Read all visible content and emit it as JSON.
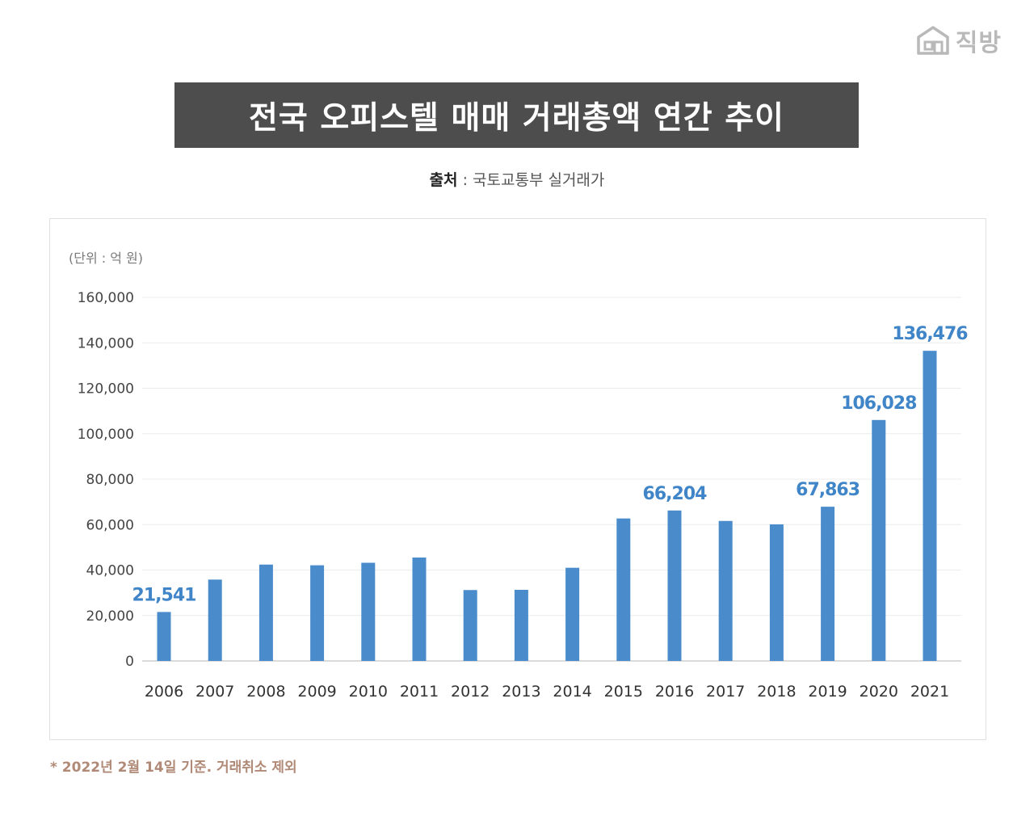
{
  "brand": {
    "logo_text": "직방",
    "logo_icon": "house-icon",
    "color": "#b9b9b9"
  },
  "title": "전국 오피스텔 매매 거래총액 연간 추이",
  "source": {
    "label": "출처",
    "separator": " : ",
    "text": "국토교통부 실거래가"
  },
  "unit": "(단위 : 억 원)",
  "footnote": "* 2022년 2월 14일 기준. 거래취소 제외",
  "colors": {
    "bar": "#4a8ccb",
    "label": "#3f85c8",
    "title_bg": "#4d4d4d",
    "footnote": "#b08a76"
  },
  "chart_data": {
    "type": "bar",
    "categories": [
      "2006",
      "2007",
      "2008",
      "2009",
      "2010",
      "2011",
      "2012",
      "2013",
      "2014",
      "2015",
      "2016",
      "2017",
      "2018",
      "2019",
      "2020",
      "2021"
    ],
    "values": [
      21541,
      35800,
      42400,
      42100,
      43200,
      45500,
      31200,
      31300,
      41000,
      62700,
      66204,
      61600,
      60100,
      67863,
      106028,
      136476
    ],
    "data_labels": {
      "0": "21,541",
      "10": "66,204",
      "13": "67,863",
      "14": "106,028",
      "15": "136,476"
    },
    "y_ticks": [
      "0",
      "20,000",
      "40,000",
      "60,000",
      "80,000",
      "100,000",
      "120,000",
      "140,000",
      "160,000"
    ],
    "ylim": [
      0,
      160000
    ],
    "grid": true,
    "legend": "none"
  }
}
